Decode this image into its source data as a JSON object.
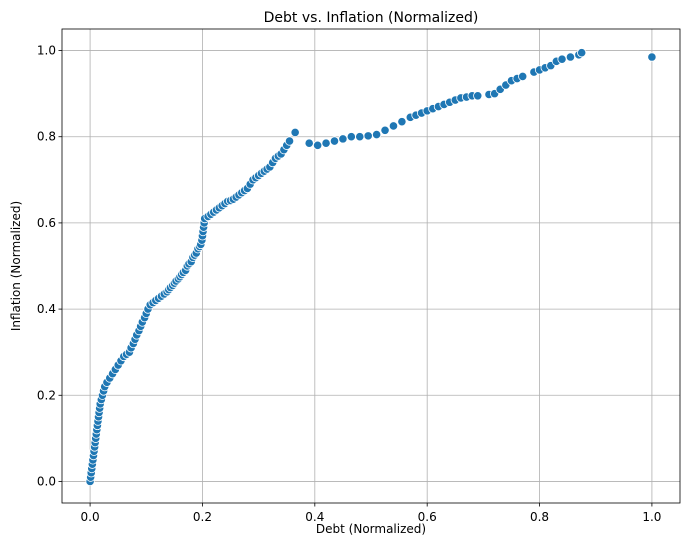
{
  "chart_data": {
    "type": "scatter",
    "title": "Debt vs. Inflation (Normalized)",
    "xlabel": "Debt (Normalized)",
    "ylabel": "Inflation (Normalized)",
    "xlim": [
      -0.05,
      1.05
    ],
    "ylim": [
      -0.05,
      1.05
    ],
    "xticks": [
      0.0,
      0.2,
      0.4,
      0.6,
      0.8,
      1.0
    ],
    "yticks": [
      0.0,
      0.2,
      0.4,
      0.6,
      0.8,
      1.0
    ],
    "xtick_labels": [
      "0.0",
      "0.2",
      "0.4",
      "0.6",
      "0.8",
      "1.0"
    ],
    "ytick_labels": [
      "0.0",
      "0.2",
      "0.4",
      "0.6",
      "0.8",
      "1.0"
    ],
    "grid": true,
    "point_color": "#1f77b4",
    "points": [
      [
        0.0,
        0.0
      ],
      [
        0.001,
        0.01
      ],
      [
        0.002,
        0.02
      ],
      [
        0.003,
        0.03
      ],
      [
        0.004,
        0.04
      ],
      [
        0.005,
        0.05
      ],
      [
        0.006,
        0.06
      ],
      [
        0.007,
        0.07
      ],
      [
        0.008,
        0.08
      ],
      [
        0.009,
        0.09
      ],
      [
        0.01,
        0.1
      ],
      [
        0.011,
        0.11
      ],
      [
        0.012,
        0.12
      ],
      [
        0.013,
        0.13
      ],
      [
        0.014,
        0.14
      ],
      [
        0.015,
        0.15
      ],
      [
        0.016,
        0.16
      ],
      [
        0.017,
        0.17
      ],
      [
        0.018,
        0.18
      ],
      [
        0.02,
        0.19
      ],
      [
        0.022,
        0.2
      ],
      [
        0.024,
        0.21
      ],
      [
        0.026,
        0.22
      ],
      [
        0.03,
        0.23
      ],
      [
        0.035,
        0.24
      ],
      [
        0.04,
        0.25
      ],
      [
        0.045,
        0.26
      ],
      [
        0.05,
        0.27
      ],
      [
        0.055,
        0.28
      ],
      [
        0.06,
        0.29
      ],
      [
        0.065,
        0.295
      ],
      [
        0.07,
        0.3
      ],
      [
        0.073,
        0.31
      ],
      [
        0.077,
        0.32
      ],
      [
        0.08,
        0.33
      ],
      [
        0.083,
        0.34
      ],
      [
        0.087,
        0.35
      ],
      [
        0.09,
        0.36
      ],
      [
        0.093,
        0.37
      ],
      [
        0.097,
        0.38
      ],
      [
        0.1,
        0.39
      ],
      [
        0.103,
        0.4
      ],
      [
        0.107,
        0.41
      ],
      [
        0.112,
        0.415
      ],
      [
        0.117,
        0.42
      ],
      [
        0.122,
        0.425
      ],
      [
        0.127,
        0.43
      ],
      [
        0.132,
        0.435
      ],
      [
        0.137,
        0.44
      ],
      [
        0.14,
        0.445
      ],
      [
        0.143,
        0.45
      ],
      [
        0.147,
        0.455
      ],
      [
        0.15,
        0.46
      ],
      [
        0.153,
        0.465
      ],
      [
        0.157,
        0.47
      ],
      [
        0.16,
        0.475
      ],
      [
        0.163,
        0.48
      ],
      [
        0.166,
        0.485
      ],
      [
        0.17,
        0.49
      ],
      [
        0.173,
        0.5
      ],
      [
        0.176,
        0.505
      ],
      [
        0.18,
        0.51
      ],
      [
        0.183,
        0.52
      ],
      [
        0.186,
        0.525
      ],
      [
        0.189,
        0.53
      ],
      [
        0.192,
        0.54
      ],
      [
        0.195,
        0.545
      ],
      [
        0.197,
        0.55
      ],
      [
        0.199,
        0.56
      ],
      [
        0.2,
        0.57
      ],
      [
        0.201,
        0.58
      ],
      [
        0.202,
        0.59
      ],
      [
        0.203,
        0.6
      ],
      [
        0.204,
        0.61
      ],
      [
        0.21,
        0.615
      ],
      [
        0.215,
        0.62
      ],
      [
        0.22,
        0.625
      ],
      [
        0.225,
        0.63
      ],
      [
        0.23,
        0.635
      ],
      [
        0.235,
        0.64
      ],
      [
        0.24,
        0.645
      ],
      [
        0.245,
        0.65
      ],
      [
        0.25,
        0.652
      ],
      [
        0.255,
        0.655
      ],
      [
        0.26,
        0.66
      ],
      [
        0.265,
        0.665
      ],
      [
        0.27,
        0.67
      ],
      [
        0.275,
        0.675
      ],
      [
        0.28,
        0.68
      ],
      [
        0.285,
        0.69
      ],
      [
        0.29,
        0.7
      ],
      [
        0.295,
        0.705
      ],
      [
        0.3,
        0.71
      ],
      [
        0.305,
        0.715
      ],
      [
        0.31,
        0.72
      ],
      [
        0.315,
        0.725
      ],
      [
        0.32,
        0.73
      ],
      [
        0.325,
        0.74
      ],
      [
        0.33,
        0.75
      ],
      [
        0.335,
        0.755
      ],
      [
        0.34,
        0.76
      ],
      [
        0.345,
        0.77
      ],
      [
        0.35,
        0.78
      ],
      [
        0.355,
        0.79
      ],
      [
        0.365,
        0.81
      ],
      [
        0.39,
        0.785
      ],
      [
        0.405,
        0.78
      ],
      [
        0.42,
        0.785
      ],
      [
        0.435,
        0.79
      ],
      [
        0.45,
        0.795
      ],
      [
        0.465,
        0.8
      ],
      [
        0.48,
        0.8
      ],
      [
        0.495,
        0.802
      ],
      [
        0.51,
        0.805
      ],
      [
        0.525,
        0.815
      ],
      [
        0.54,
        0.825
      ],
      [
        0.555,
        0.835
      ],
      [
        0.57,
        0.845
      ],
      [
        0.58,
        0.85
      ],
      [
        0.59,
        0.855
      ],
      [
        0.6,
        0.86
      ],
      [
        0.61,
        0.865
      ],
      [
        0.62,
        0.87
      ],
      [
        0.63,
        0.875
      ],
      [
        0.64,
        0.88
      ],
      [
        0.65,
        0.885
      ],
      [
        0.66,
        0.89
      ],
      [
        0.67,
        0.892
      ],
      [
        0.68,
        0.895
      ],
      [
        0.69,
        0.895
      ],
      [
        0.71,
        0.898
      ],
      [
        0.72,
        0.9
      ],
      [
        0.73,
        0.91
      ],
      [
        0.74,
        0.92
      ],
      [
        0.75,
        0.93
      ],
      [
        0.76,
        0.935
      ],
      [
        0.77,
        0.94
      ],
      [
        0.79,
        0.95
      ],
      [
        0.8,
        0.955
      ],
      [
        0.81,
        0.96
      ],
      [
        0.82,
        0.965
      ],
      [
        0.83,
        0.975
      ],
      [
        0.84,
        0.98
      ],
      [
        0.855,
        0.985
      ],
      [
        0.87,
        0.99
      ],
      [
        0.875,
        0.995
      ],
      [
        1.0,
        0.985
      ]
    ]
  }
}
